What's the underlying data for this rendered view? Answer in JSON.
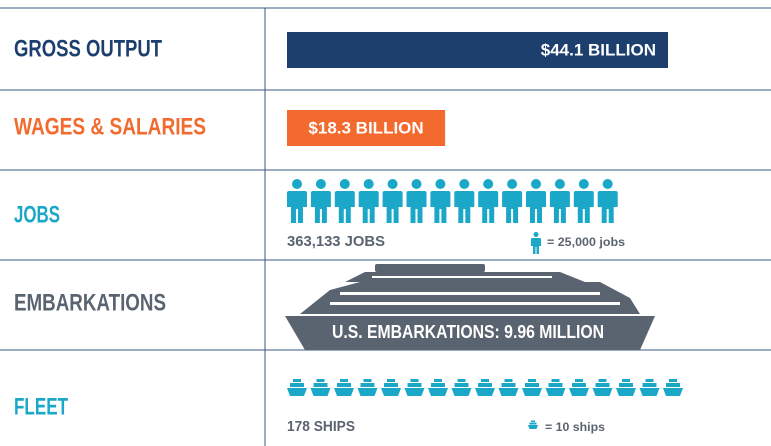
{
  "rows": [
    {
      "label": "GROSS OUTPUT",
      "value": 44.1,
      "value_label": "$44.1 BILLION",
      "color": "#1d3f6e"
    },
    {
      "label": "WAGES & SALARIES",
      "value": 18.3,
      "value_label": "$18.3 BILLION",
      "color": "#f26a2e"
    },
    {
      "label": "JOBS",
      "count": 363133,
      "count_label": "363,133 JOBS",
      "per_icon": 25000,
      "per_icon_label": "= 25,000 jobs",
      "color": "#1ba8c8"
    },
    {
      "label": "EMBARKATIONS",
      "text": "U.S. EMBARKATIONS: 9.96 MILLION",
      "color": "#5a6470"
    },
    {
      "label": "FLEET",
      "count": 178,
      "count_label": "178 SHIPS",
      "per_icon": 10,
      "per_icon_label": "= 10 ships",
      "color": "#1ba8c8"
    }
  ]
}
